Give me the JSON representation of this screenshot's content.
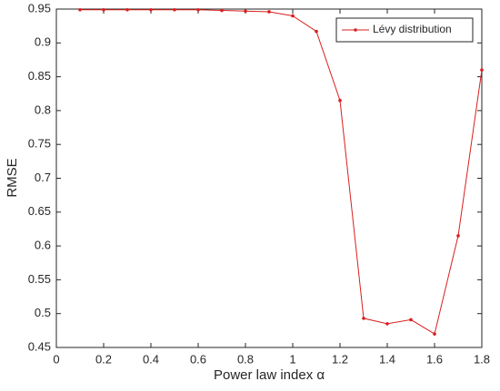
{
  "chart_data": {
    "type": "line",
    "xlabel": "Power law index α",
    "ylabel": "RMSE",
    "x": [
      0.1,
      0.2,
      0.3,
      0.4,
      0.5,
      0.6,
      0.7,
      0.8,
      0.9,
      1.0,
      1.1,
      1.2,
      1.3,
      1.4,
      1.5,
      1.6,
      1.7,
      1.8
    ],
    "series": [
      {
        "name": "Lévy distribution",
        "color": "#d91f1f",
        "values": [
          0.949,
          0.949,
          0.949,
          0.949,
          0.949,
          0.949,
          0.948,
          0.947,
          0.946,
          0.94,
          0.917,
          0.815,
          0.493,
          0.485,
          0.491,
          0.47,
          0.615,
          0.86
        ]
      }
    ],
    "xlim": [
      0,
      1.8
    ],
    "xticks": [
      0,
      0.2,
      0.4,
      0.6,
      0.8,
      1,
      1.2,
      1.4,
      1.6,
      1.8
    ],
    "ylim": [
      0.45,
      0.95
    ],
    "yticks": [
      0.45,
      0.5,
      0.55,
      0.6,
      0.65,
      0.7,
      0.75,
      0.8,
      0.85,
      0.9,
      0.95
    ],
    "legend": "northeast"
  }
}
